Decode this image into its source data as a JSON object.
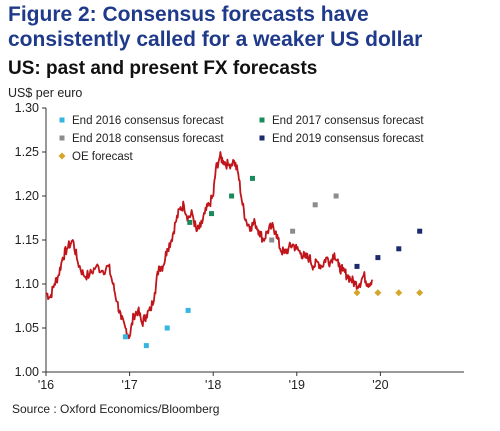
{
  "figure_title": "Figure 2: Consensus forecasts have consistently called for a weaker US dollar",
  "source": "Source : Oxford Economics/Bloomberg",
  "chart_data": {
    "type": "line",
    "title": "US: past and present FX forecasts",
    "ylabel": "US$ per euro",
    "xlabel": "",
    "ylim": [
      1.0,
      1.3
    ],
    "xlim": [
      2016.0,
      2021.0
    ],
    "yticks": [
      "1.00",
      "1.05",
      "1.10",
      "1.15",
      "1.20",
      "1.25",
      "1.30"
    ],
    "xticks": [
      {
        "value": 2016,
        "label": "'16"
      },
      {
        "value": 2017,
        "label": "'17"
      },
      {
        "value": 2018,
        "label": "'18"
      },
      {
        "value": 2019,
        "label": "'19"
      },
      {
        "value": 2020,
        "label": "'20"
      }
    ],
    "grid": false,
    "legend_position": "top",
    "line_series": {
      "color": "#c0161b",
      "points": [
        [
          2016.0,
          1.09
        ],
        [
          2016.05,
          1.085
        ],
        [
          2016.1,
          1.1
        ],
        [
          2016.15,
          1.11
        ],
        [
          2016.2,
          1.13
        ],
        [
          2016.25,
          1.14
        ],
        [
          2016.32,
          1.15
        ],
        [
          2016.38,
          1.125
        ],
        [
          2016.45,
          1.11
        ],
        [
          2016.52,
          1.11
        ],
        [
          2016.6,
          1.12
        ],
        [
          2016.68,
          1.115
        ],
        [
          2016.75,
          1.12
        ],
        [
          2016.8,
          1.1
        ],
        [
          2016.85,
          1.08
        ],
        [
          2016.9,
          1.06
        ],
        [
          2016.95,
          1.05
        ],
        [
          2017.0,
          1.04
        ],
        [
          2017.05,
          1.065
        ],
        [
          2017.1,
          1.07
        ],
        [
          2017.15,
          1.055
        ],
        [
          2017.2,
          1.065
        ],
        [
          2017.25,
          1.07
        ],
        [
          2017.3,
          1.09
        ],
        [
          2017.35,
          1.12
        ],
        [
          2017.4,
          1.12
        ],
        [
          2017.45,
          1.14
        ],
        [
          2017.5,
          1.15
        ],
        [
          2017.55,
          1.17
        ],
        [
          2017.6,
          1.185
        ],
        [
          2017.65,
          1.19
        ],
        [
          2017.7,
          1.175
        ],
        [
          2017.75,
          1.18
        ],
        [
          2017.8,
          1.16
        ],
        [
          2017.85,
          1.165
        ],
        [
          2017.9,
          1.18
        ],
        [
          2017.95,
          1.19
        ],
        [
          2018.0,
          1.2
        ],
        [
          2018.03,
          1.23
        ],
        [
          2018.08,
          1.245
        ],
        [
          2018.12,
          1.24
        ],
        [
          2018.18,
          1.235
        ],
        [
          2018.25,
          1.24
        ],
        [
          2018.3,
          1.225
        ],
        [
          2018.35,
          1.19
        ],
        [
          2018.4,
          1.17
        ],
        [
          2018.45,
          1.165
        ],
        [
          2018.5,
          1.17
        ],
        [
          2018.55,
          1.16
        ],
        [
          2018.6,
          1.15
        ],
        [
          2018.65,
          1.16
        ],
        [
          2018.7,
          1.165
        ],
        [
          2018.75,
          1.16
        ],
        [
          2018.8,
          1.14
        ],
        [
          2018.85,
          1.135
        ],
        [
          2018.9,
          1.14
        ],
        [
          2018.95,
          1.145
        ],
        [
          2019.0,
          1.14
        ],
        [
          2019.05,
          1.135
        ],
        [
          2019.1,
          1.13
        ],
        [
          2019.15,
          1.13
        ],
        [
          2019.2,
          1.12
        ],
        [
          2019.25,
          1.125
        ],
        [
          2019.3,
          1.12
        ],
        [
          2019.35,
          1.13
        ],
        [
          2019.4,
          1.125
        ],
        [
          2019.45,
          1.135
        ],
        [
          2019.5,
          1.12
        ],
        [
          2019.55,
          1.115
        ],
        [
          2019.6,
          1.11
        ],
        [
          2019.65,
          1.105
        ],
        [
          2019.7,
          1.1
        ],
        [
          2019.75,
          1.1
        ],
        [
          2019.8,
          1.11
        ],
        [
          2019.85,
          1.1
        ],
        [
          2019.9,
          1.105
        ]
      ]
    },
    "scatter_series": [
      {
        "name": "End 2016 consensus forecast",
        "color": "#35b5e0",
        "marker": "square",
        "points": [
          [
            2016.95,
            1.04
          ],
          [
            2017.2,
            1.03
          ],
          [
            2017.45,
            1.05
          ],
          [
            2017.7,
            1.07
          ]
        ]
      },
      {
        "name": "End 2017 consensus forecast",
        "color": "#1a8a5a",
        "marker": "square",
        "points": [
          [
            2017.72,
            1.17
          ],
          [
            2017.98,
            1.18
          ],
          [
            2018.22,
            1.2
          ],
          [
            2018.47,
            1.22
          ]
        ]
      },
      {
        "name": "End 2018 consensus forecast",
        "color": "#8c8c8c",
        "marker": "square",
        "points": [
          [
            2018.7,
            1.15
          ],
          [
            2018.95,
            1.16
          ],
          [
            2019.22,
            1.19
          ],
          [
            2019.47,
            1.2
          ]
        ]
      },
      {
        "name": "End 2019 consensus forecast",
        "color": "#1a2a6c",
        "marker": "square",
        "points": [
          [
            2019.72,
            1.12
          ],
          [
            2019.97,
            1.13
          ],
          [
            2020.22,
            1.14
          ],
          [
            2020.47,
            1.16
          ]
        ]
      },
      {
        "name": "OE forecast",
        "color": "#d4a62a",
        "marker": "diamond",
        "points": [
          [
            2019.72,
            1.09
          ],
          [
            2019.97,
            1.09
          ],
          [
            2020.22,
            1.09
          ],
          [
            2020.47,
            1.09
          ]
        ]
      }
    ]
  }
}
